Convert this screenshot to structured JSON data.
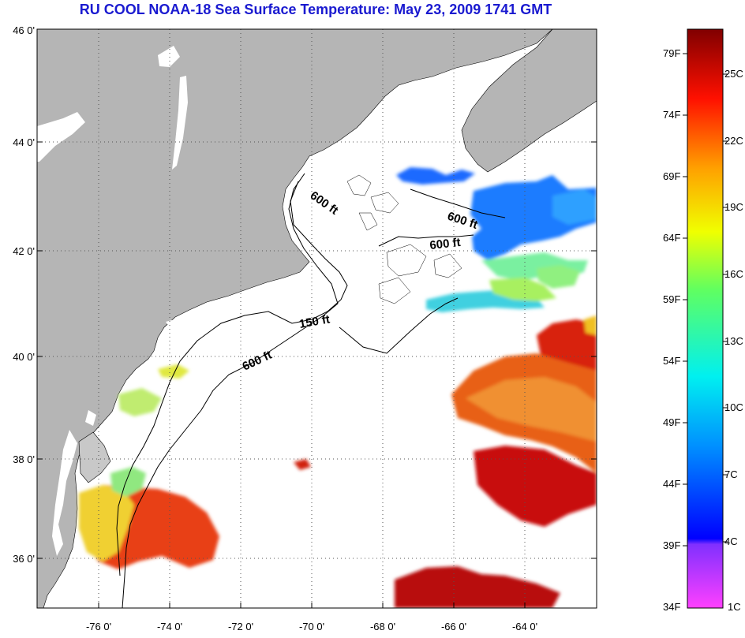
{
  "title": "RU COOL  NOAA-18  Sea Surface Temperature:  May 23, 2009 1741 GMT",
  "axes": {
    "lat_ticks": [
      "46 0'",
      "44 0'",
      "42 0'",
      "40 0'",
      "38 0'",
      "36 0'"
    ],
    "lon_ticks": [
      "-76 0'",
      "-74 0'",
      "-72 0'",
      "-70 0'",
      "-68 0'",
      "-66 0'",
      "-64 0'"
    ],
    "grid": "dotted"
  },
  "contours": [
    {
      "label": "600 ft"
    },
    {
      "label": "600 ft"
    },
    {
      "label": "600 ft"
    },
    {
      "label": "150 ft"
    },
    {
      "label": "600 ft"
    }
  ],
  "colorbar": {
    "fahrenheit": [
      "79F",
      "74F",
      "69F",
      "64F",
      "59F",
      "54F",
      "49F",
      "44F",
      "39F",
      "34F"
    ],
    "celsius": [
      "25C",
      "22C",
      "19C",
      "16C",
      "13C",
      "10C",
      "7C",
      "4C",
      "1C"
    ]
  },
  "colors": {
    "land": "#b5b5b5",
    "title": "#1a1ad0",
    "cold": "#0040ff",
    "warm": "#e01010"
  }
}
